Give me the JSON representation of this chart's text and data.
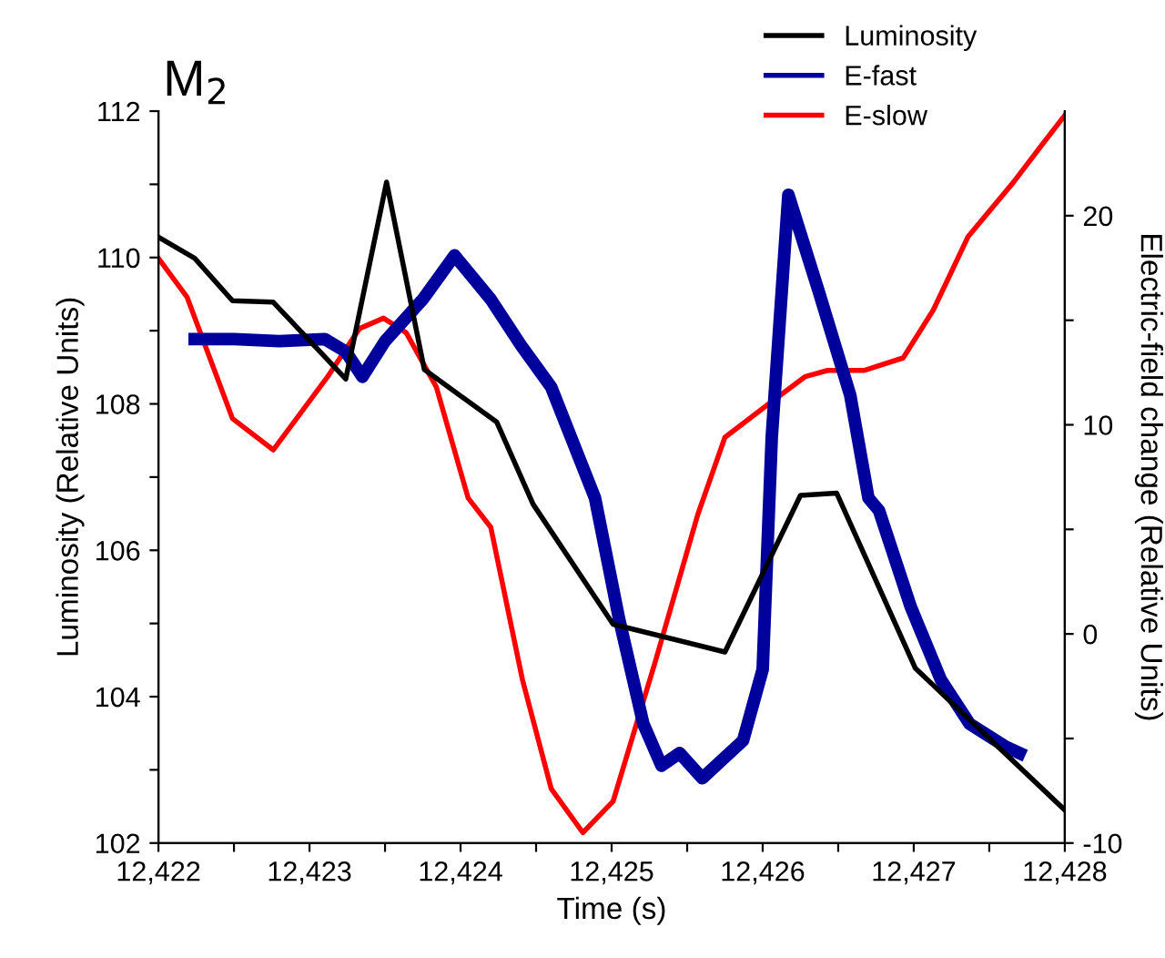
{
  "chart_data": {
    "type": "line",
    "title": "M$_{2}$",
    "xlabel": "Time (s)",
    "ylabel": "Luminosity (Relative Units)",
    "y2label": "Electric-field change (Relative Units)",
    "series": [
      {
        "name": "Luminosity",
        "color": "#000000",
        "x": [
          12422,
          12422.24,
          12422.49,
          12422.76,
          12423.24,
          12423.51,
          12423.76,
          12424.24,
          12424.48,
          12425.01,
          12425.75,
          12426.25,
          12426.49,
          12427.01,
          12428
        ],
        "values": [
          110.28,
          109.99,
          109.41,
          109.39,
          108.34,
          111.03,
          108.47,
          107.75,
          106.63,
          104.99,
          104.61,
          106.75,
          106.78,
          104.39,
          102.45
        ]
      },
      {
        "name": "E-fast",
        "color": "#00009c",
        "axis": "y2",
        "x": [
          12422.24,
          12422.5,
          12422.8,
          12423.1,
          12423.24,
          12423.35,
          12423.5,
          12423.75,
          12423.96,
          12424.2,
          12424.4,
          12424.6,
          12424.89,
          12425.05,
          12425.21,
          12425.33,
          12425.45,
          12425.6,
          12425.87,
          12426.0,
          12426.06,
          12426.17,
          12426.37,
          12426.58,
          12426.7,
          12426.77,
          12426.98,
          12427.18,
          12427.37,
          12427.61,
          12427.7
        ],
        "values": [
          14.1,
          14.1,
          14.0,
          14.1,
          13.5,
          12.3,
          14.0,
          16.0,
          18.1,
          16.0,
          13.8,
          11.8,
          6.5,
          0.7,
          -4.3,
          -6.3,
          -5.7,
          -6.9,
          -5.1,
          -1.7,
          9.4,
          21.0,
          16.4,
          11.4,
          6.5,
          5.9,
          1.3,
          -2.2,
          -4.3,
          -5.4,
          -5.7
        ]
      },
      {
        "name": "E-slow",
        "color": "#ff0000",
        "axis": "y2",
        "x": [
          12422,
          12422.19,
          12422.49,
          12422.76,
          12423.12,
          12423.33,
          12423.49,
          12423.64,
          12423.84,
          12424.05,
          12424.2,
          12424.41,
          12424.6,
          12424.81,
          12425.01,
          12425.29,
          12425.57,
          12425.75,
          12426.04,
          12426.28,
          12426.43,
          12426.67,
          12426.93,
          12427.13,
          12427.36,
          12427.66,
          12427.85,
          12428
        ],
        "values": [
          17.96,
          16.1,
          10.3,
          8.8,
          12.3,
          14.6,
          15.1,
          14.4,
          11.8,
          6.5,
          5.1,
          -2.2,
          -7.4,
          -9.5,
          -8.0,
          -1.3,
          5.7,
          9.4,
          11.0,
          12.3,
          12.6,
          12.6,
          13.2,
          15.5,
          19.0,
          21.6,
          23.4,
          24.8
        ]
      }
    ],
    "xlim": [
      12422,
      12428
    ],
    "xticks": [
      {
        "value": 12422,
        "label": "12,422"
      },
      {
        "value": 12422.5,
        "label": null
      },
      {
        "value": 12423,
        "label": "12,423"
      },
      {
        "value": 12423.5,
        "label": null
      },
      {
        "value": 12424,
        "label": "12,424"
      },
      {
        "value": 12424.5,
        "label": null
      },
      {
        "value": 12425,
        "label": "12,425"
      },
      {
        "value": 12425.5,
        "label": null
      },
      {
        "value": 12426,
        "label": "12,426"
      },
      {
        "value": 12426.5,
        "label": null
      },
      {
        "value": 12427,
        "label": "12,427"
      },
      {
        "value": 12427.5,
        "label": null
      },
      {
        "value": 12428,
        "label": "12,428"
      }
    ],
    "ylim": [
      102,
      112
    ],
    "yticks": [
      102,
      {
        "value": 103,
        "label": null
      },
      104,
      {
        "value": 105,
        "label": null
      },
      106,
      {
        "value": 107,
        "label": null
      },
      108,
      {
        "value": 109,
        "label": null
      },
      110,
      {
        "value": 111,
        "label": null
      },
      112
    ],
    "y2lim": [
      -10,
      25
    ],
    "y2ticks": [
      -10,
      {
        "value": -5,
        "label": null
      },
      0,
      {
        "value": 5,
        "label": null
      },
      10,
      {
        "value": 15,
        "label": null
      },
      20
    ],
    "legend": "top right",
    "grid": false,
    "marker": "none",
    "line_style": "solid"
  }
}
